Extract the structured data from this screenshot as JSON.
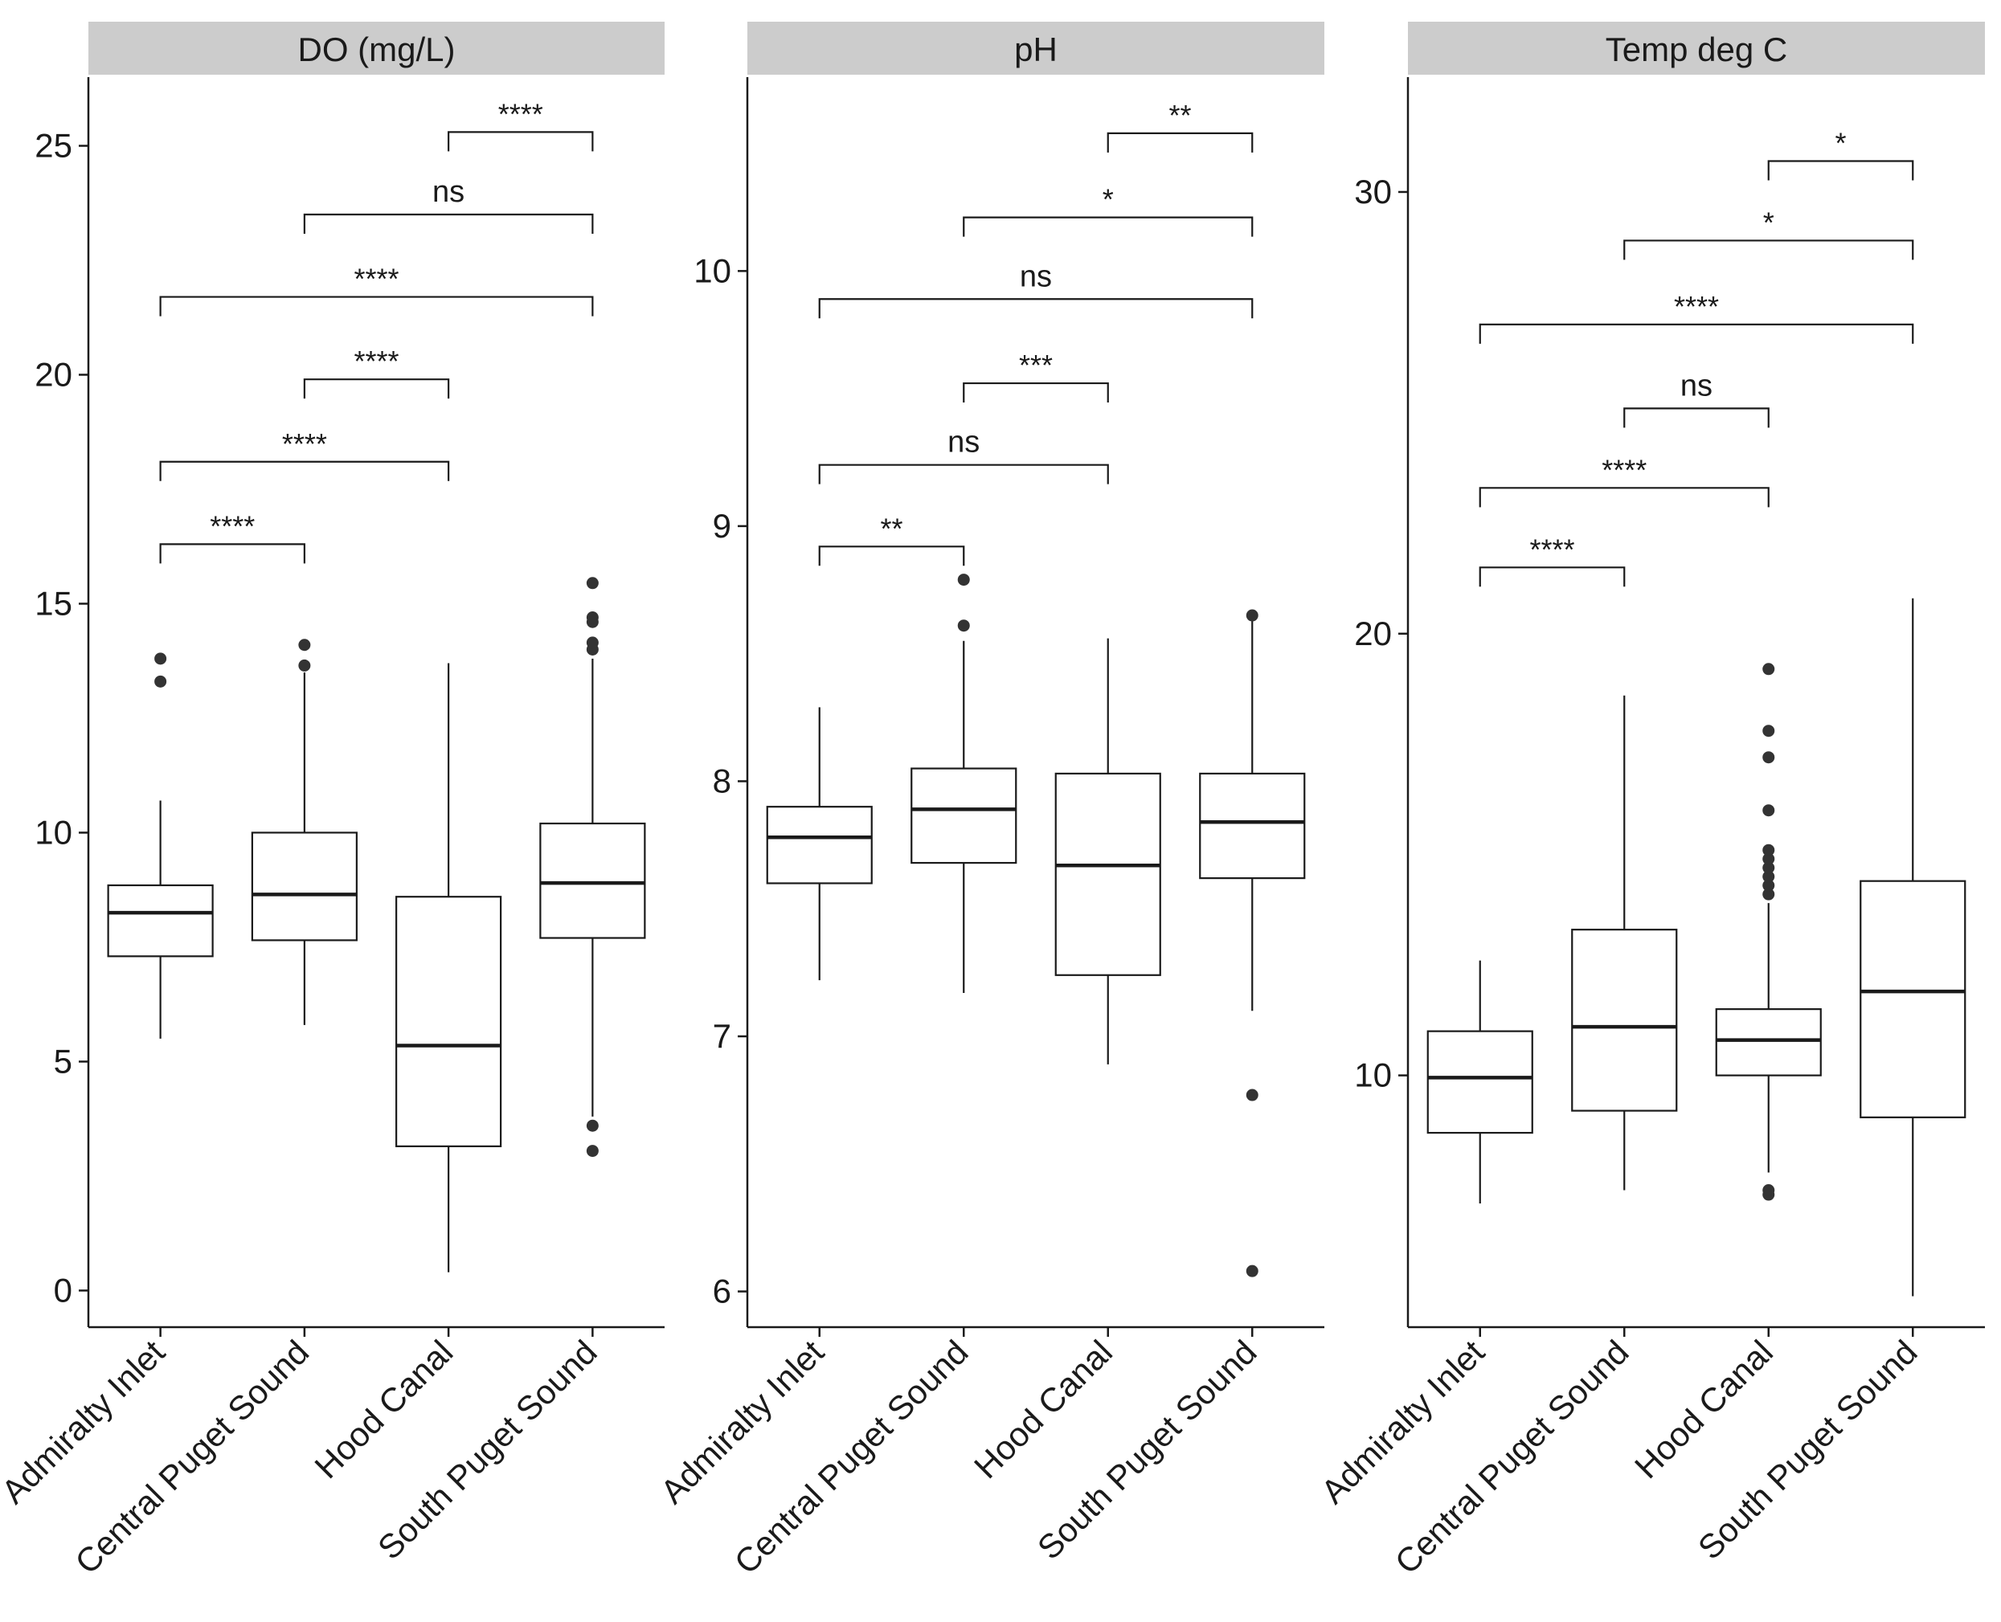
{
  "chart_data": [
    {
      "type": "box",
      "title": "DO (mg/L)",
      "categories": [
        "Admiralty Inlet",
        "Central Puget Sound",
        "Hood Canal",
        "South Puget Sound"
      ],
      "yticks": [
        0,
        5,
        10,
        15,
        20,
        25
      ],
      "ylim": [
        -0.8,
        26.5
      ],
      "boxes": [
        {
          "category": "Admiralty Inlet",
          "whisker_low": 5.5,
          "q1": 7.3,
          "median": 8.25,
          "q3": 8.85,
          "whisker_high": 10.7,
          "outliers": [
            13.3,
            13.8
          ]
        },
        {
          "category": "Central Puget Sound",
          "whisker_low": 5.8,
          "q1": 7.65,
          "median": 8.65,
          "q3": 10.0,
          "whisker_high": 13.5,
          "outliers": [
            13.65,
            14.1
          ]
        },
        {
          "category": "Hood Canal",
          "whisker_low": 0.4,
          "q1": 3.15,
          "median": 5.35,
          "q3": 8.6,
          "whisker_high": 13.7,
          "outliers": []
        },
        {
          "category": "South Puget Sound",
          "whisker_low": 3.8,
          "q1": 7.7,
          "median": 8.9,
          "q3": 10.2,
          "whisker_high": 13.8,
          "outliers": [
            3.05,
            3.6,
            14.0,
            14.15,
            14.6,
            14.7,
            15.45
          ]
        }
      ],
      "comparisons": [
        {
          "from": "Admiralty Inlet",
          "to": "Central Puget Sound",
          "y": 16.3,
          "label": "****"
        },
        {
          "from": "Admiralty Inlet",
          "to": "Hood Canal",
          "y": 18.1,
          "label": "****"
        },
        {
          "from": "Central Puget Sound",
          "to": "Hood Canal",
          "y": 19.9,
          "label": "****"
        },
        {
          "from": "Admiralty Inlet",
          "to": "South Puget Sound",
          "y": 21.7,
          "label": "****"
        },
        {
          "from": "Central Puget Sound",
          "to": "South Puget Sound",
          "y": 23.5,
          "label": "ns"
        },
        {
          "from": "Hood Canal",
          "to": "South Puget Sound",
          "y": 25.3,
          "label": "****"
        }
      ]
    },
    {
      "type": "box",
      "title": "pH",
      "categories": [
        "Admiralty Inlet",
        "Central Puget Sound",
        "Hood Canal",
        "South Puget Sound"
      ],
      "yticks": [
        6,
        7,
        8,
        9,
        10
      ],
      "ylim": [
        5.86,
        10.76
      ],
      "boxes": [
        {
          "category": "Admiralty Inlet",
          "whisker_low": 7.22,
          "q1": 7.6,
          "median": 7.78,
          "q3": 7.9,
          "whisker_high": 8.29,
          "outliers": []
        },
        {
          "category": "Central Puget Sound",
          "whisker_low": 7.17,
          "q1": 7.68,
          "median": 7.89,
          "q3": 8.05,
          "whisker_high": 8.55,
          "outliers": [
            8.61,
            8.79
          ]
        },
        {
          "category": "Hood Canal",
          "whisker_low": 6.89,
          "q1": 7.24,
          "median": 7.67,
          "q3": 8.03,
          "whisker_high": 8.56,
          "outliers": []
        },
        {
          "category": "South Puget Sound",
          "whisker_low": 7.1,
          "q1": 7.62,
          "median": 7.84,
          "q3": 8.03,
          "whisker_high": 8.64,
          "outliers": [
            6.08,
            6.77,
            8.65
          ]
        }
      ],
      "comparisons": [
        {
          "from": "Admiralty Inlet",
          "to": "Central Puget Sound",
          "y": 8.92,
          "label": "**"
        },
        {
          "from": "Admiralty Inlet",
          "to": "Hood Canal",
          "y": 9.24,
          "label": "ns"
        },
        {
          "from": "Central Puget Sound",
          "to": "Hood Canal",
          "y": 9.56,
          "label": "***"
        },
        {
          "from": "Admiralty Inlet",
          "to": "South Puget Sound",
          "y": 9.89,
          "label": "ns"
        },
        {
          "from": "Central Puget Sound",
          "to": "South Puget Sound",
          "y": 10.21,
          "label": "*"
        },
        {
          "from": "Hood Canal",
          "to": "South Puget Sound",
          "y": 10.54,
          "label": "**"
        }
      ]
    },
    {
      "type": "box",
      "title": "Temp deg C",
      "categories": [
        "Admiralty Inlet",
        "Central Puget Sound",
        "Hood Canal",
        "South Puget Sound"
      ],
      "yticks": [
        10,
        20,
        30
      ],
      "ylim": [
        4.3,
        32.6
      ],
      "boxes": [
        {
          "category": "Admiralty Inlet",
          "whisker_low": 7.1,
          "q1": 8.7,
          "median": 9.95,
          "q3": 11.0,
          "whisker_high": 12.6,
          "outliers": []
        },
        {
          "category": "Central Puget Sound",
          "whisker_low": 7.4,
          "q1": 9.2,
          "median": 11.1,
          "q3": 13.3,
          "whisker_high": 18.6,
          "outliers": []
        },
        {
          "category": "Hood Canal",
          "whisker_low": 7.8,
          "q1": 10.0,
          "median": 10.8,
          "q3": 11.5,
          "whisker_high": 13.9,
          "outliers": [
            7.3,
            7.4,
            14.1,
            14.3,
            14.5,
            14.7,
            14.9,
            15.1,
            16.0,
            17.2,
            17.8,
            19.2
          ]
        },
        {
          "category": "South Puget Sound",
          "whisker_low": 5.0,
          "q1": 9.05,
          "median": 11.9,
          "q3": 14.4,
          "whisker_high": 20.8,
          "outliers": []
        }
      ],
      "comparisons": [
        {
          "from": "Admiralty Inlet",
          "to": "Central Puget Sound",
          "y": 21.5,
          "label": "****"
        },
        {
          "from": "Admiralty Inlet",
          "to": "Hood Canal",
          "y": 23.3,
          "label": "****"
        },
        {
          "from": "Central Puget Sound",
          "to": "Hood Canal",
          "y": 25.1,
          "label": "ns"
        },
        {
          "from": "Admiralty Inlet",
          "to": "South Puget Sound",
          "y": 27.0,
          "label": "****"
        },
        {
          "from": "Central Puget Sound",
          "to": "South Puget Sound",
          "y": 28.9,
          "label": "*"
        },
        {
          "from": "Hood Canal",
          "to": "South Puget Sound",
          "y": 30.7,
          "label": "*"
        }
      ]
    }
  ],
  "colors": {
    "strip_fill": "#cccccc",
    "ink": "#1a1a1a",
    "outlier": "#333333"
  }
}
